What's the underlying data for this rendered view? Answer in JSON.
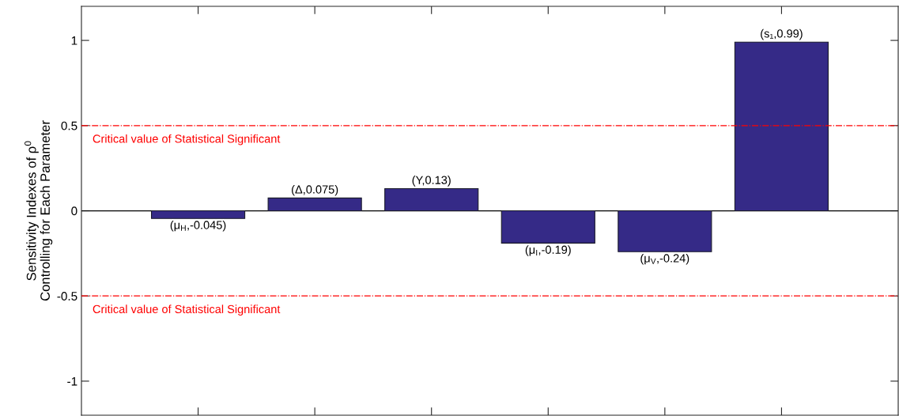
{
  "chart_data": {
    "type": "bar",
    "ylabel": "Sensitivity Indexes of ρ$^{0}$\nControlling for Each Parameter",
    "categories": [
      null,
      null,
      null,
      null,
      null,
      null
    ],
    "values": [
      -0.045,
      0.075,
      0.13,
      -0.19,
      -0.24,
      0.99
    ],
    "color": "#352a87",
    "value_labels": [
      "(μ$_{H}$,-0.045)",
      "(Δ,0.075)",
      "(Υ,0.13)",
      "(μ$_{I}$,-0.19)",
      "(μ$_{V}$,-0.24)",
      "(s₁,0.99)"
    ],
    "ylim": [
      -1.2,
      1.2
    ],
    "yticks": [
      -1,
      -0.5,
      0,
      0.5,
      1
    ],
    "ref_lines": [
      {
        "axis": "y",
        "value": 0,
        "color": "#000000",
        "line_style": "solid"
      },
      {
        "axis": "y",
        "value": 0.5,
        "label": "Critical value of Statistical Significant",
        "color": "#ff0000",
        "line_style": "dashdot"
      },
      {
        "axis": "y",
        "value": -0.5,
        "label": "Critical value of Statistical Significant",
        "color": "#ff0000",
        "line_style": "dashdot"
      }
    ],
    "tick_labels": "y"
  }
}
